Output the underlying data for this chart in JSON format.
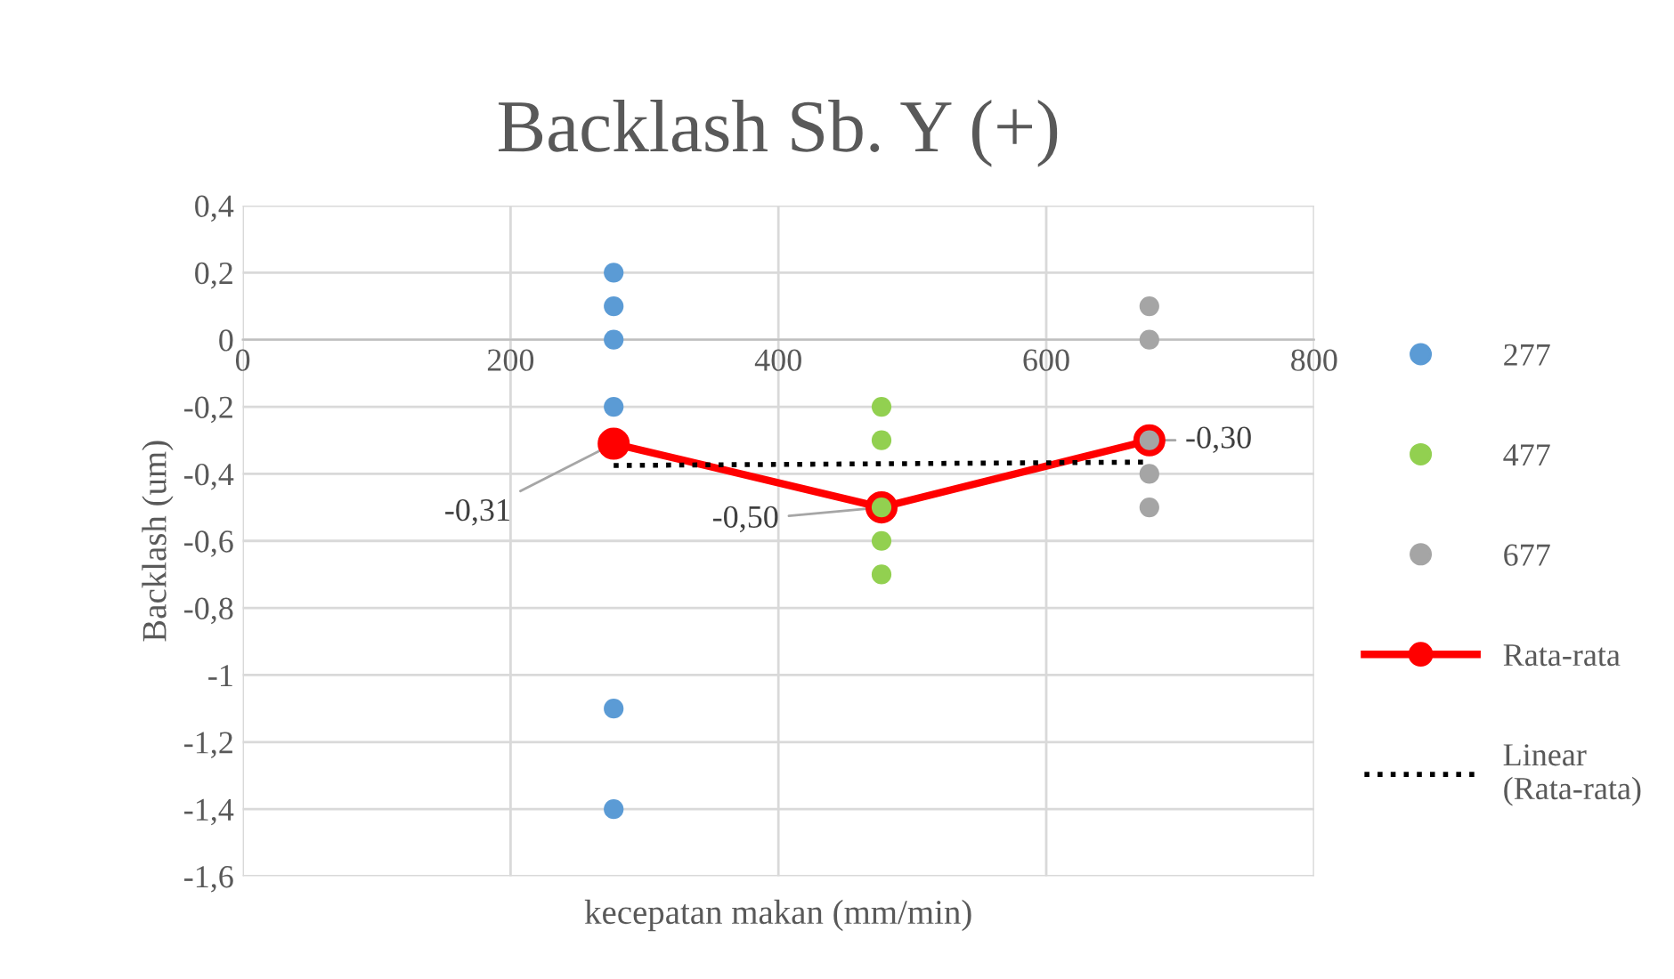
{
  "chart_data": {
    "type": "scatter",
    "title": "Backlash Sb. Y (+)",
    "xlabel": "kecepatan makan (mm/min)",
    "ylabel": "Backlash (um)",
    "xlim": [
      0,
      800
    ],
    "xticks": [
      0,
      200,
      400,
      600,
      800
    ],
    "ylim": [
      -1.6,
      0.4
    ],
    "yticks": [
      {
        "value": -1.6,
        "label": "-1,6"
      },
      {
        "value": -1.4,
        "label": "-1,4"
      },
      {
        "value": -1.2,
        "label": "-1,2"
      },
      {
        "value": -1,
        "label": "-1"
      },
      {
        "value": -0.8,
        "label": "-0,8"
      },
      {
        "value": -0.6,
        "label": "-0,6"
      },
      {
        "value": -0.4,
        "label": "-0,4"
      },
      {
        "value": -0.2,
        "label": "-0,2"
      },
      0,
      {
        "value": 0.2,
        "label": "0,2"
      },
      {
        "value": 0.4,
        "label": "0,4"
      }
    ],
    "grid": true,
    "legend": "right",
    "marker": "circle",
    "series": [
      {
        "name": "277",
        "color": "#5b9bd5",
        "x": [
          277,
          277,
          277,
          277,
          277,
          277
        ],
        "values": [
          0.2,
          0.1,
          0,
          -0.2,
          -1.1,
          -1.4
        ]
      },
      {
        "name": "477",
        "color": "#92d050",
        "x": [
          477,
          477,
          477,
          477,
          477
        ],
        "values": [
          -0.2,
          -0.3,
          -0.5,
          -0.6,
          -0.7
        ]
      },
      {
        "name": "677",
        "color": "#a5a5a5",
        "x": [
          677,
          677,
          677,
          677,
          677
        ],
        "values": [
          0.1,
          0,
          -0.3,
          -0.4,
          -0.5
        ]
      },
      {
        "name": "Rata-rata",
        "type": "line",
        "color": "#ff0000",
        "x": [
          277,
          477,
          677
        ],
        "values": [
          -0.31,
          -0.5,
          -0.3
        ],
        "value_labels": [
          "-0,31",
          "-0,50",
          "-0,30"
        ]
      },
      {
        "name": "Linear\n(Rata-rata)",
        "type": "line",
        "marker": "none",
        "line_style": "dotted",
        "color": "#000000",
        "x": [
          277,
          677
        ],
        "values": [
          -0.375,
          -0.365
        ]
      }
    ]
  }
}
